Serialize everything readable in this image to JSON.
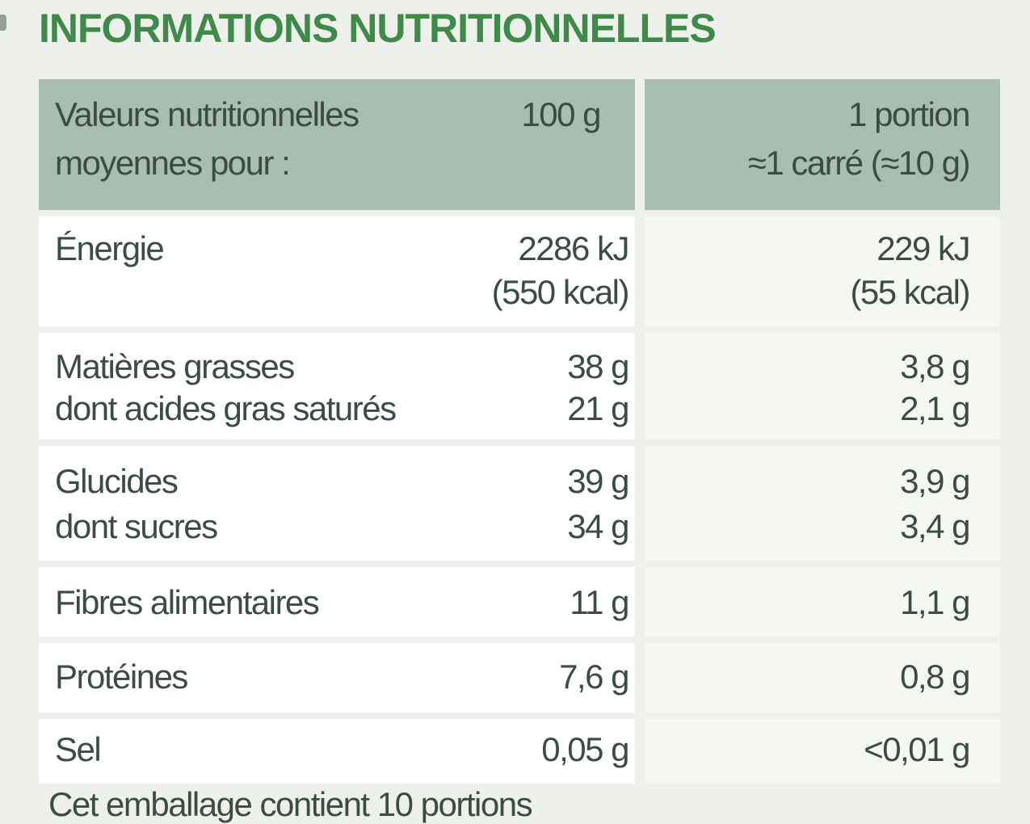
{
  "title": "INFORMATIONS NUTRITIONNELLES",
  "header": {
    "label_line1": "Valeurs nutritionnelles",
    "label_line2": "moyennes pour :",
    "col1": "100 g",
    "col2_line1": "1 portion",
    "col2_line2": "≈1 carré (≈10 g)"
  },
  "rows": [
    {
      "label": "Énergie",
      "per100": "2286 kJ",
      "per100_sub": "(550 kcal)",
      "portion": "229 kJ",
      "portion_sub": "(55 kcal)"
    },
    {
      "label": "Matières grasses",
      "per100": "38 g",
      "portion": "3,8 g"
    },
    {
      "label": "dont acides gras saturés",
      "per100": "21 g",
      "portion": "2,1 g"
    },
    {
      "label": "Glucides",
      "per100": "39 g",
      "portion": "3,9 g"
    },
    {
      "label": "dont sucres",
      "per100": "34 g",
      "portion": "3,4 g"
    },
    {
      "label": "Fibres alimentaires",
      "per100": "11 g",
      "portion": "1,1 g"
    },
    {
      "label": "Protéines",
      "per100": "7,6 g",
      "portion": "0,8 g"
    },
    {
      "label": "Sel",
      "per100": "0,05 g",
      "portion": "<0,01 g"
    }
  ],
  "footer": "Cet emballage contient 10 portions"
}
